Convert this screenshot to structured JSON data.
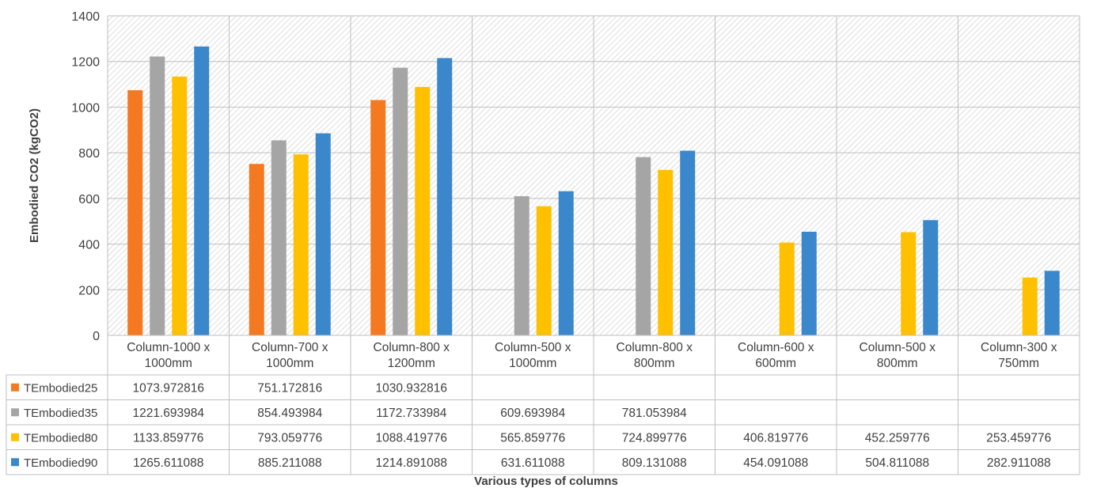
{
  "chart_data": {
    "type": "bar",
    "xlabel": "Various types of columns",
    "ylabel": "Embodied CO2 (kgCO2)",
    "ylim": [
      0,
      1400
    ],
    "yticks": [
      0,
      200,
      400,
      600,
      800,
      1000,
      1200,
      1400
    ],
    "grid": true,
    "legend": "data-table-below",
    "categories": [
      [
        "Column-1000 x",
        "1000mm"
      ],
      [
        "Column-700 x",
        "1000mm"
      ],
      [
        "Column-800 x",
        "1200mm"
      ],
      [
        "Column-500 x",
        "1000mm"
      ],
      [
        "Column-800 x",
        "800mm"
      ],
      [
        "Column-600 x",
        "600mm"
      ],
      [
        "Column-500 x",
        "800mm"
      ],
      [
        "Column-300 x",
        "750mm"
      ]
    ],
    "series": [
      {
        "name": "TEmbodied25",
        "color": "#F47920",
        "values": [
          1073.972816,
          751.172816,
          1030.932816,
          null,
          null,
          null,
          null,
          null
        ],
        "labels": [
          "1073.972816",
          "751.172816",
          "1030.932816",
          "",
          "",
          "",
          "",
          ""
        ]
      },
      {
        "name": "TEmbodied35",
        "color": "#A5A5A5",
        "values": [
          1221.693984,
          854.493984,
          1172.733984,
          609.693984,
          781.053984,
          null,
          null,
          null
        ],
        "labels": [
          "1221.693984",
          "854.493984",
          "1172.733984",
          "609.693984",
          "781.053984",
          "",
          "",
          ""
        ]
      },
      {
        "name": "TEmbodied80",
        "color": "#FFC000",
        "values": [
          1133.859776,
          793.059776,
          1088.419776,
          565.859776,
          724.899776,
          406.819776,
          452.259776,
          253.459776
        ],
        "labels": [
          "1133.859776",
          "793.059776",
          "1088.419776",
          "565.859776",
          "724.899776",
          "406.819776",
          "452.259776",
          "253.459776"
        ]
      },
      {
        "name": "TEmbodied90",
        "color": "#3A87CC",
        "values": [
          1265.611088,
          885.211088,
          1214.891088,
          631.611088,
          809.131088,
          454.091088,
          504.811088,
          282.911088
        ],
        "labels": [
          "1265.611088",
          "885.211088",
          "1214.891088",
          "631.611088",
          "809.131088",
          "454.091088",
          "504.811088",
          "282.911088"
        ]
      }
    ]
  }
}
